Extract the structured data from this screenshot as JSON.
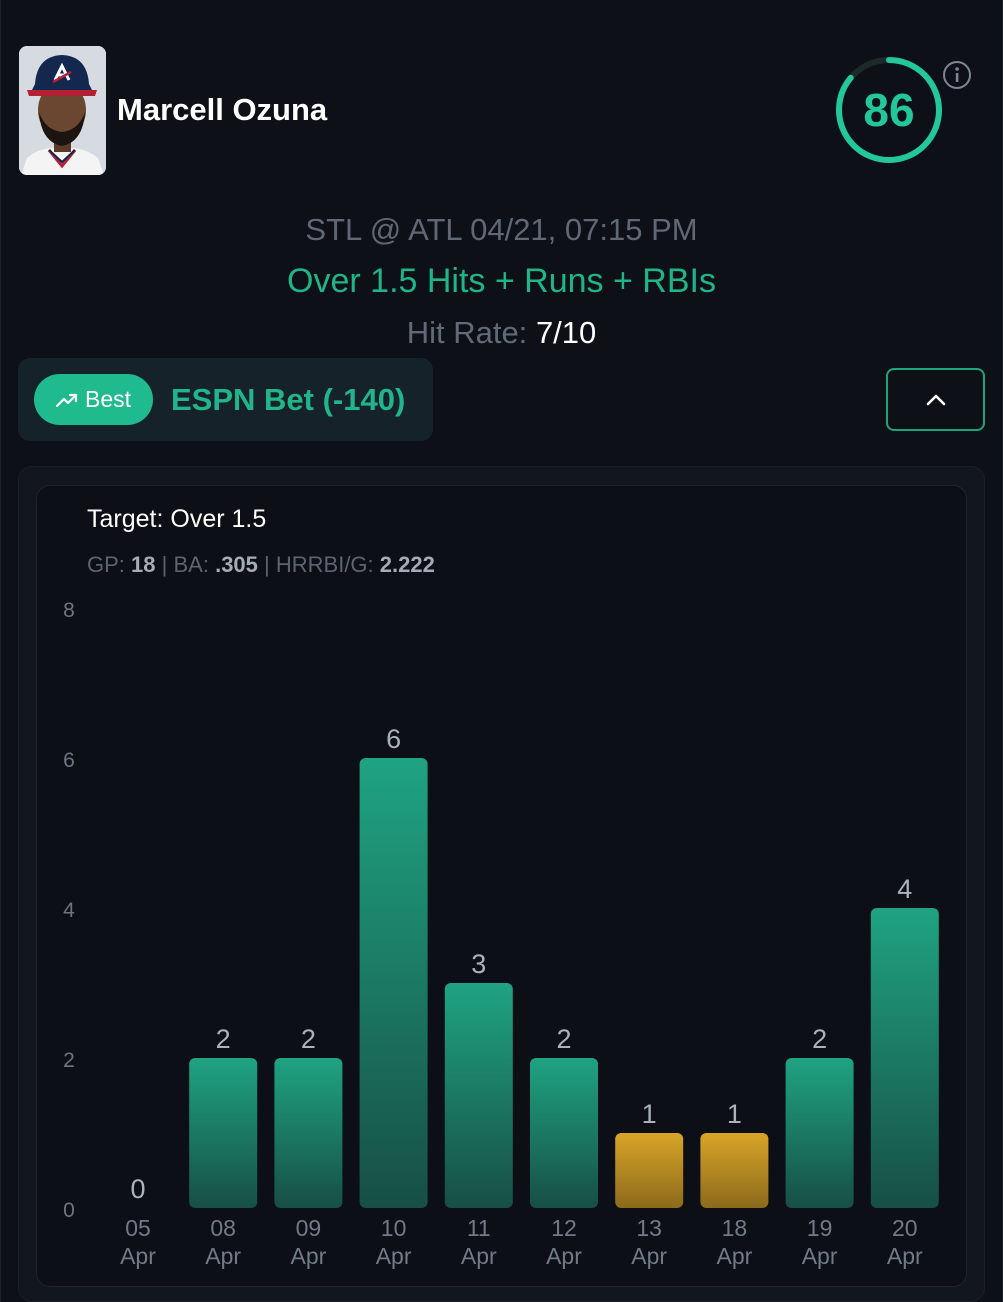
{
  "player": {
    "name": "Marcell Ozuna",
    "score": "86",
    "score_value": 86,
    "colors": {
      "accent": "#22c79a",
      "brand_green": "#1fb587"
    }
  },
  "game": {
    "matchup": "STL @ ATL 04/21, 07:15 PM",
    "prop": "Over 1.5 Hits + Runs + RBIs",
    "hit_rate_label": "Hit Rate:",
    "hit_rate_value": "7/10"
  },
  "book": {
    "badge_icon": "trending-up-icon",
    "badge_label": "Best",
    "name": "ESPN Bet (-140)"
  },
  "controls": {
    "collapse_icon": "chevron-up-icon",
    "info_icon": "info-icon"
  },
  "stats": {
    "target": "Target: Over 1.5",
    "gp_label": "GP:",
    "gp_value": "18",
    "ba_label": "BA:",
    "ba_value": ".305",
    "hrrbi_label": "HRRBI/G:",
    "hrrbi_value": "2.222",
    "sep": "|"
  },
  "chart_data": {
    "type": "bar",
    "categories": [
      [
        "05",
        "Apr"
      ],
      [
        "08",
        "Apr"
      ],
      [
        "09",
        "Apr"
      ],
      [
        "10",
        "Apr"
      ],
      [
        "11",
        "Apr"
      ],
      [
        "12",
        "Apr"
      ],
      [
        "13",
        "Apr"
      ],
      [
        "18",
        "Apr"
      ],
      [
        "19",
        "Apr"
      ],
      [
        "20",
        "Apr"
      ]
    ],
    "values": [
      0,
      2,
      2,
      6,
      3,
      2,
      1,
      1,
      2,
      4
    ],
    "yticks": [
      0,
      2,
      4,
      6,
      8
    ],
    "ylim": [
      0,
      8
    ],
    "threshold": 1.5,
    "colors": {
      "hit": "#1fa382",
      "miss": "#d9a528"
    },
    "grid": false
  }
}
